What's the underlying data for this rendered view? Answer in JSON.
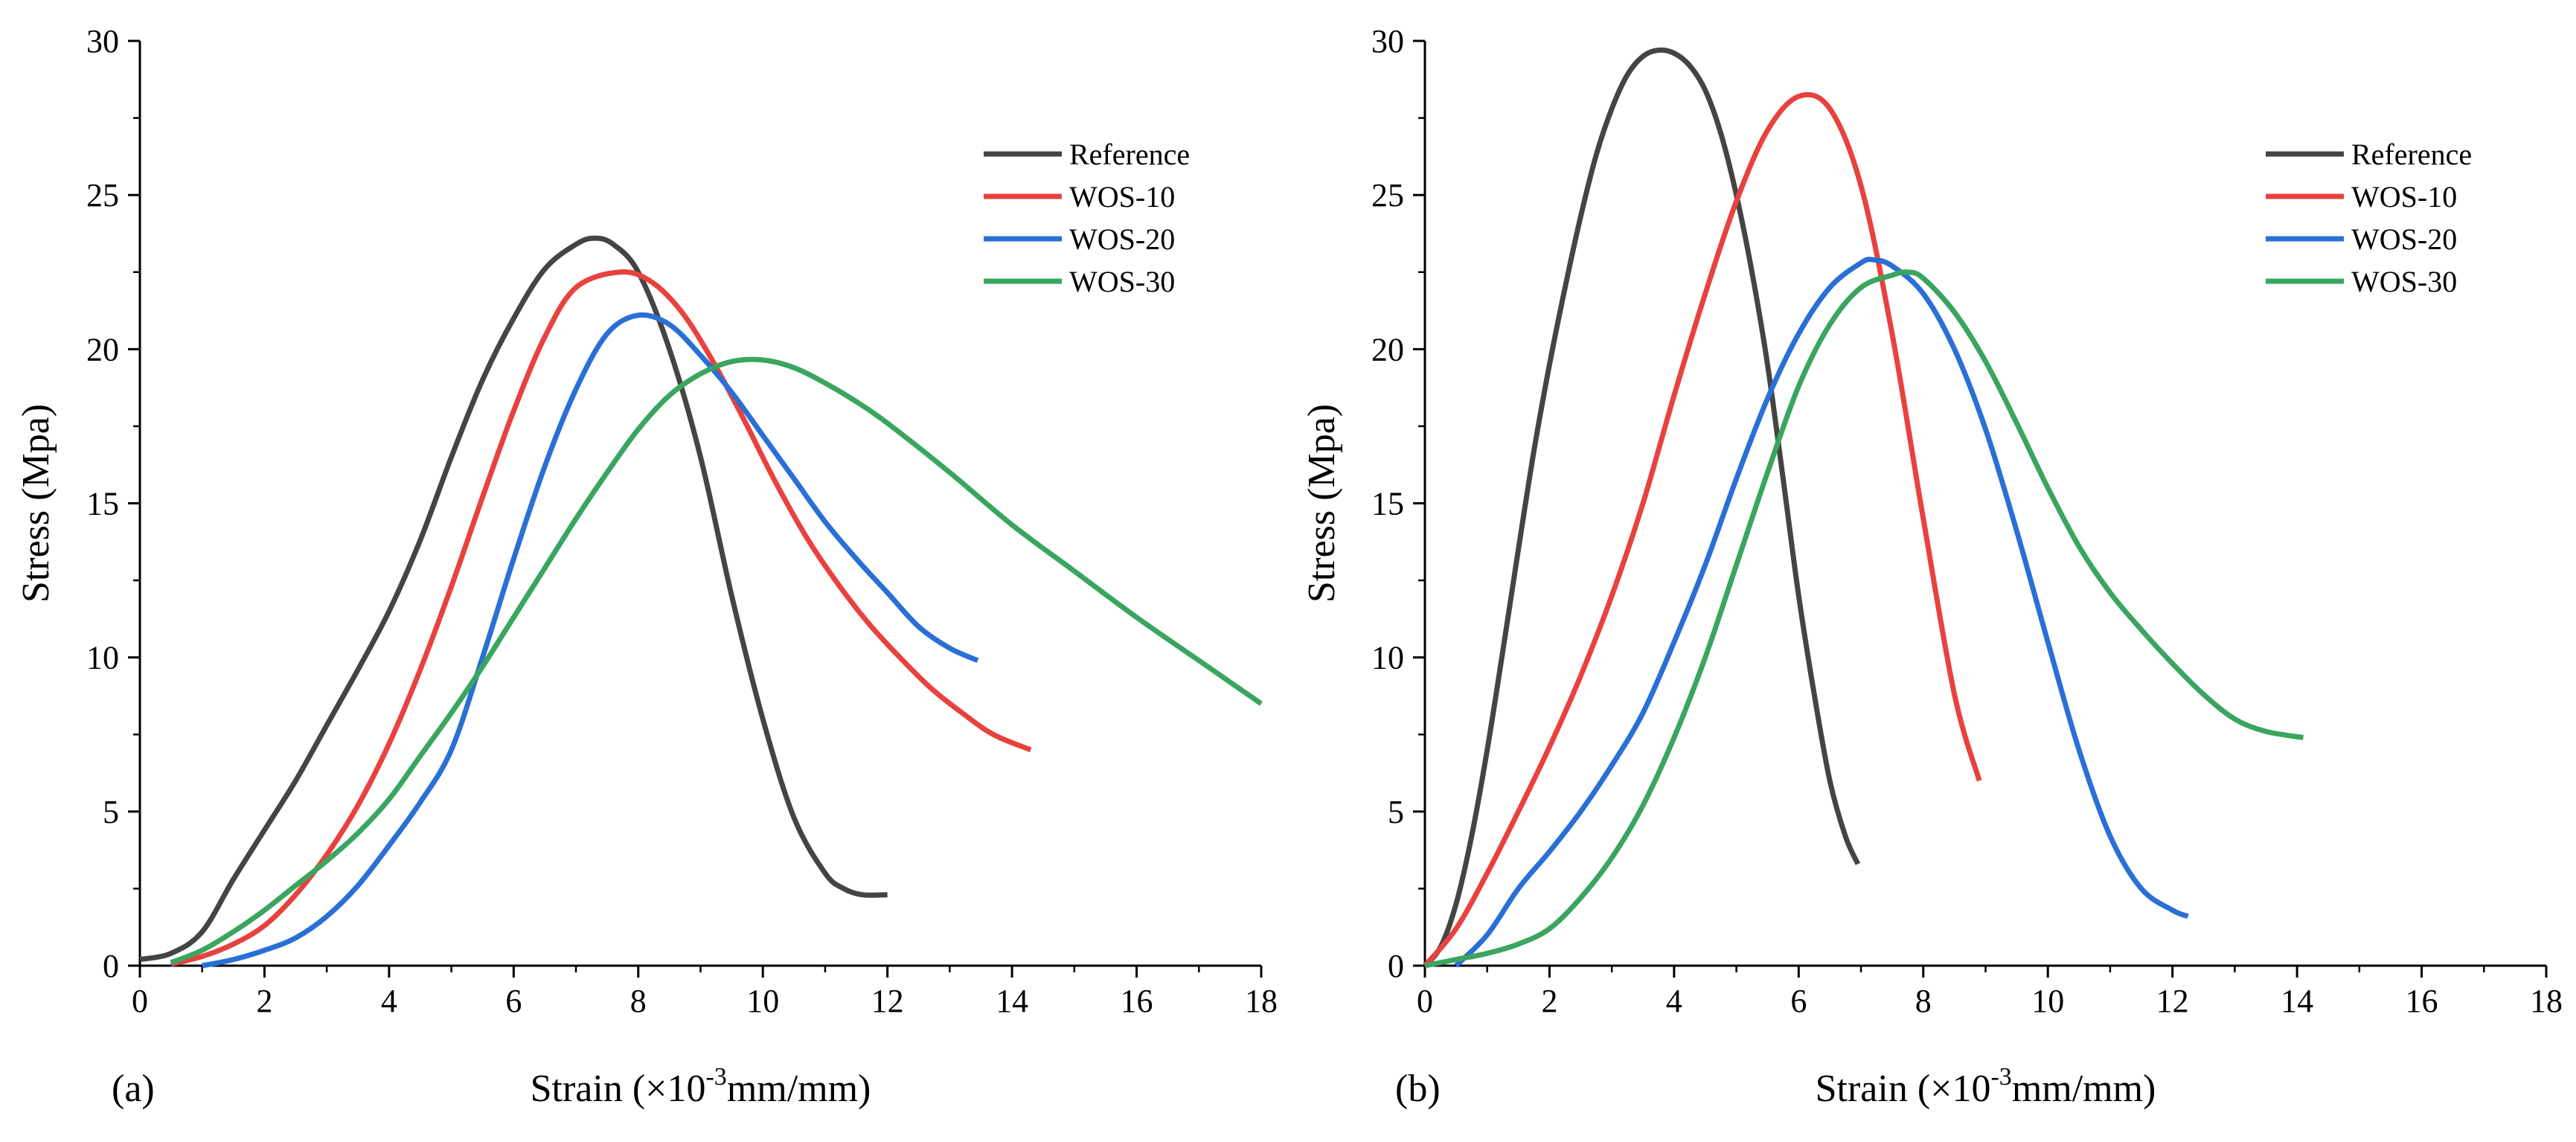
{
  "chart_data": [
    {
      "type": "line",
      "panel_label": "(a)",
      "xlabel": "Strain (×10",
      "xlabel_sup": "-3",
      "xlabel_suffix": "mm/mm)",
      "ylabel": "Stress (Mpa)",
      "xlim": [
        0,
        18
      ],
      "ylim": [
        0,
        30
      ],
      "xticks": [
        0,
        2,
        4,
        6,
        8,
        10,
        12,
        14,
        16,
        18
      ],
      "yticks": [
        0,
        5,
        10,
        15,
        20,
        25,
        30
      ],
      "legend_position": "top-right",
      "grid": false,
      "series": [
        {
          "name": "Reference",
          "color": "#444444",
          "x": [
            0,
            0.5,
            1,
            1.5,
            2,
            2.5,
            3,
            3.5,
            4,
            4.5,
            5,
            5.5,
            6,
            6.5,
            7,
            7.3,
            7.6,
            8,
            8.5,
            9,
            9.5,
            10,
            10.5,
            11,
            11.3,
            11.6,
            12
          ],
          "y": [
            0.2,
            0.4,
            1.1,
            2.8,
            4.4,
            6.0,
            7.8,
            9.6,
            11.5,
            13.8,
            16.5,
            19.0,
            21.0,
            22.6,
            23.4,
            23.6,
            23.4,
            22.5,
            20.0,
            16.5,
            12.0,
            8.0,
            4.8,
            3.0,
            2.5,
            2.3,
            2.3
          ]
        },
        {
          "name": "WOS-10",
          "color": "#e8413e",
          "x": [
            0.5,
            1,
            1.5,
            2,
            2.5,
            3,
            3.5,
            4,
            4.5,
            5,
            5.5,
            6,
            6.5,
            7,
            7.7,
            8.2,
            8.7,
            9.2,
            9.7,
            10.2,
            10.7,
            11.2,
            11.7,
            12.2,
            12.7,
            13.2,
            13.7,
            14.3
          ],
          "y": [
            0.05,
            0.3,
            0.7,
            1.3,
            2.3,
            3.6,
            5.2,
            7.2,
            9.6,
            12.3,
            15.2,
            18.0,
            20.4,
            22.0,
            22.5,
            22.2,
            21.2,
            19.6,
            17.7,
            15.7,
            13.9,
            12.4,
            11.1,
            10.0,
            9.0,
            8.2,
            7.5,
            7.0
          ]
        },
        {
          "name": "WOS-20",
          "color": "#2a6fd6",
          "x": [
            1,
            1.5,
            2,
            2.5,
            3,
            3.5,
            4,
            4.5,
            5,
            5.5,
            6,
            6.5,
            7,
            7.5,
            8,
            8.5,
            9,
            9.5,
            10,
            10.5,
            11,
            11.5,
            12,
            12.5,
            13,
            13.45
          ],
          "y": [
            0.0,
            0.2,
            0.5,
            0.9,
            1.6,
            2.6,
            3.9,
            5.3,
            7.0,
            10.0,
            13.2,
            16.2,
            18.7,
            20.5,
            21.1,
            20.8,
            19.8,
            18.6,
            17.2,
            15.8,
            14.4,
            13.2,
            12.1,
            11.0,
            10.3,
            9.9
          ]
        },
        {
          "name": "WOS-30",
          "color": "#3aa55e",
          "x": [
            0.5,
            1,
            1.5,
            2,
            2.5,
            3,
            3.5,
            4,
            4.5,
            5,
            5.5,
            6,
            6.5,
            7,
            7.5,
            8,
            8.5,
            9,
            9.5,
            10,
            10.5,
            11,
            11.5,
            12,
            13,
            14,
            15,
            16,
            17,
            18
          ],
          "y": [
            0.1,
            0.5,
            1.1,
            1.8,
            2.6,
            3.4,
            4.3,
            5.4,
            6.8,
            8.2,
            9.7,
            11.3,
            12.9,
            14.5,
            16.0,
            17.4,
            18.5,
            19.2,
            19.6,
            19.65,
            19.4,
            18.9,
            18.3,
            17.6,
            16.0,
            14.3,
            12.8,
            11.3,
            9.9,
            8.5
          ]
        }
      ]
    },
    {
      "type": "line",
      "panel_label": "(b)",
      "xlabel": "Strain (×10",
      "xlabel_sup": "-3",
      "xlabel_suffix": "mm/mm)",
      "ylabel": "Stress (Mpa)",
      "xlim": [
        0,
        18
      ],
      "ylim": [
        0,
        30
      ],
      "xticks": [
        0,
        2,
        4,
        6,
        8,
        10,
        12,
        14,
        16,
        18
      ],
      "yticks": [
        0,
        5,
        10,
        15,
        20,
        25,
        30
      ],
      "legend_position": "top-right",
      "grid": false,
      "series": [
        {
          "name": "Reference",
          "color": "#444444",
          "x": [
            0,
            0.25,
            0.5,
            0.75,
            1,
            1.25,
            1.5,
            1.75,
            2,
            2.25,
            2.5,
            2.75,
            3,
            3.25,
            3.5,
            3.75,
            4,
            4.25,
            4.5,
            4.75,
            5,
            5.25,
            5.5,
            5.75,
            6,
            6.25,
            6.5,
            6.75,
            6.95
          ],
          "y": [
            0.0,
            0.6,
            2.0,
            4.2,
            7.0,
            10.2,
            13.5,
            16.7,
            19.5,
            22.0,
            24.3,
            26.3,
            27.8,
            28.9,
            29.5,
            29.7,
            29.6,
            29.2,
            28.4,
            27.0,
            25.0,
            22.5,
            19.5,
            15.8,
            12.0,
            8.8,
            6.0,
            4.2,
            3.3
          ]
        },
        {
          "name": "WOS-10",
          "color": "#e8413e",
          "x": [
            0,
            0.5,
            1,
            1.5,
            2,
            2.5,
            3,
            3.5,
            4,
            4.5,
            5,
            5.5,
            6,
            6.5,
            7,
            7.5,
            8,
            8.5,
            8.9
          ],
          "y": [
            0.0,
            1.2,
            3.0,
            5.0,
            7.1,
            9.4,
            12.0,
            15.0,
            18.5,
            21.8,
            24.8,
            27.1,
            28.2,
            27.8,
            25.3,
            20.5,
            14.5,
            8.8,
            6.0
          ]
        },
        {
          "name": "WOS-20",
          "color": "#2a6fd6",
          "x": [
            0.5,
            1,
            1.5,
            2,
            2.5,
            3,
            3.5,
            4,
            4.5,
            5,
            5.5,
            6,
            6.5,
            7,
            7.2,
            7.5,
            8,
            8.5,
            9,
            9.5,
            10,
            10.5,
            11,
            11.5,
            12,
            12.25
          ],
          "y": [
            0.0,
            1.0,
            2.5,
            3.7,
            5.0,
            6.5,
            8.2,
            10.5,
            13.0,
            15.8,
            18.4,
            20.5,
            22.0,
            22.8,
            22.9,
            22.7,
            21.8,
            20.0,
            17.4,
            14.1,
            10.5,
            7.0,
            4.2,
            2.5,
            1.8,
            1.6
          ]
        },
        {
          "name": "WOS-30",
          "color": "#3aa55e",
          "x": [
            0,
            0.5,
            1,
            1.5,
            2,
            2.5,
            3,
            3.5,
            4,
            4.5,
            5,
            5.5,
            6,
            6.5,
            7,
            7.5,
            7.75,
            8,
            8.5,
            9,
            9.5,
            10,
            10.5,
            11,
            11.5,
            12,
            12.5,
            13,
            13.5,
            14.1
          ],
          "y": [
            0.0,
            0.2,
            0.4,
            0.7,
            1.2,
            2.2,
            3.5,
            5.2,
            7.4,
            10.0,
            13.0,
            16.0,
            18.8,
            20.8,
            22.0,
            22.4,
            22.5,
            22.3,
            21.2,
            19.6,
            17.6,
            15.5,
            13.6,
            12.1,
            10.9,
            9.8,
            8.8,
            8.0,
            7.6,
            7.4
          ]
        }
      ]
    }
  ]
}
